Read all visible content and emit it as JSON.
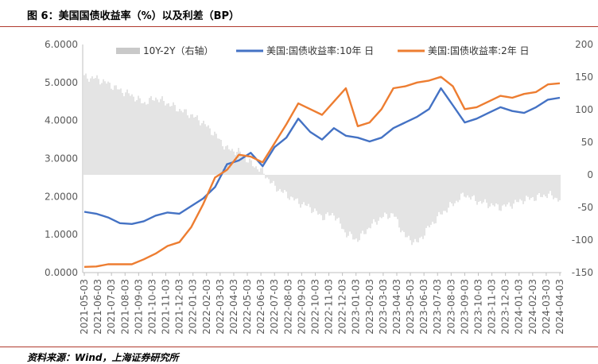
{
  "figure": {
    "title": "图 6：美国国债收益率（%）以及利差（BP）",
    "source": "资料来源：Wind，上海证券研究所"
  },
  "colors": {
    "ten_year": "#4472c4",
    "two_year": "#ed7d31",
    "spread": "#c9c9c9",
    "rule": "#b03a2e"
  },
  "chart_data": {
    "type": "line",
    "title": "",
    "xlabel": "",
    "ylabel": "",
    "ylim": [
      0,
      6
    ],
    "y2lim": [
      -150,
      200
    ],
    "y_ticks": [
      "6.0000",
      "5.0000",
      "4.0000",
      "3.0000",
      "2.0000",
      "1.0000",
      "0.0000"
    ],
    "y2_ticks": [
      "200",
      "150",
      "100",
      "50",
      "0",
      "-50",
      "-100",
      "-150"
    ],
    "x_ticks": [
      "2021-05-03",
      "2021-06-03",
      "2021-07-03",
      "2021-08-03",
      "2021-09-03",
      "2021-10-03",
      "2021-11-03",
      "2021-12-03",
      "2022-01-03",
      "2022-02-03",
      "2022-03-03",
      "2022-04-03",
      "2022-05-03",
      "2022-06-03",
      "2022-07-03",
      "2022-08-03",
      "2022-09-03",
      "2022-10-03",
      "2022-11-03",
      "2022-12-03",
      "2023-01-03",
      "2023-02-03",
      "2023-03-03",
      "2023-04-03",
      "2023-05-03",
      "2023-06-03",
      "2023-07-03",
      "2023-08-03",
      "2023-09-03",
      "2023-10-03",
      "2023-11-03",
      "2023-12-03",
      "2024-01-03",
      "2024-02-03",
      "2024-03-03",
      "2024-04-03"
    ],
    "legend": {
      "placement": "top"
    },
    "series": [
      {
        "name": "10Y-2Y（右轴）",
        "type": "bar",
        "axis": "right",
        "color": "#c9c9c9",
        "values": [
          150,
          148,
          140,
          130,
          122,
          110,
          118,
          110,
          100,
          92,
          80,
          62,
          40,
          35,
          18,
          5,
          -18,
          -30,
          -42,
          -50,
          -65,
          -60,
          -90,
          -100,
          -80,
          -65,
          -60,
          -95,
          -105,
          -80,
          -60,
          -45,
          -30,
          -40,
          -45,
          -50,
          -45,
          -38,
          -35,
          -30,
          -38
        ]
      },
      {
        "name": "美国:国债收益率:10年 日",
        "type": "line",
        "axis": "left",
        "color": "#4472c4",
        "values": [
          1.6,
          1.55,
          1.45,
          1.3,
          1.28,
          1.35,
          1.5,
          1.58,
          1.55,
          1.75,
          1.95,
          2.25,
          2.85,
          2.95,
          3.15,
          2.8,
          3.3,
          3.55,
          4.05,
          3.7,
          3.5,
          3.8,
          3.6,
          3.55,
          3.45,
          3.55,
          3.8,
          3.95,
          4.1,
          4.3,
          4.85,
          4.4,
          3.95,
          4.05,
          4.2,
          4.35,
          4.25,
          4.2,
          4.35,
          4.55,
          4.6
        ]
      },
      {
        "name": "美国:国债收益率:2年 日",
        "type": "line",
        "axis": "left",
        "color": "#ed7d31",
        "values": [
          0.15,
          0.16,
          0.22,
          0.22,
          0.22,
          0.35,
          0.5,
          0.7,
          0.8,
          1.2,
          1.8,
          2.5,
          2.7,
          3.1,
          3.05,
          2.9,
          3.4,
          3.9,
          4.45,
          4.3,
          4.15,
          4.5,
          4.85,
          3.85,
          3.95,
          4.3,
          4.85,
          4.9,
          5.0,
          5.05,
          5.15,
          4.9,
          4.3,
          4.35,
          4.5,
          4.65,
          4.6,
          4.7,
          4.75,
          4.95,
          4.98
        ]
      }
    ]
  }
}
